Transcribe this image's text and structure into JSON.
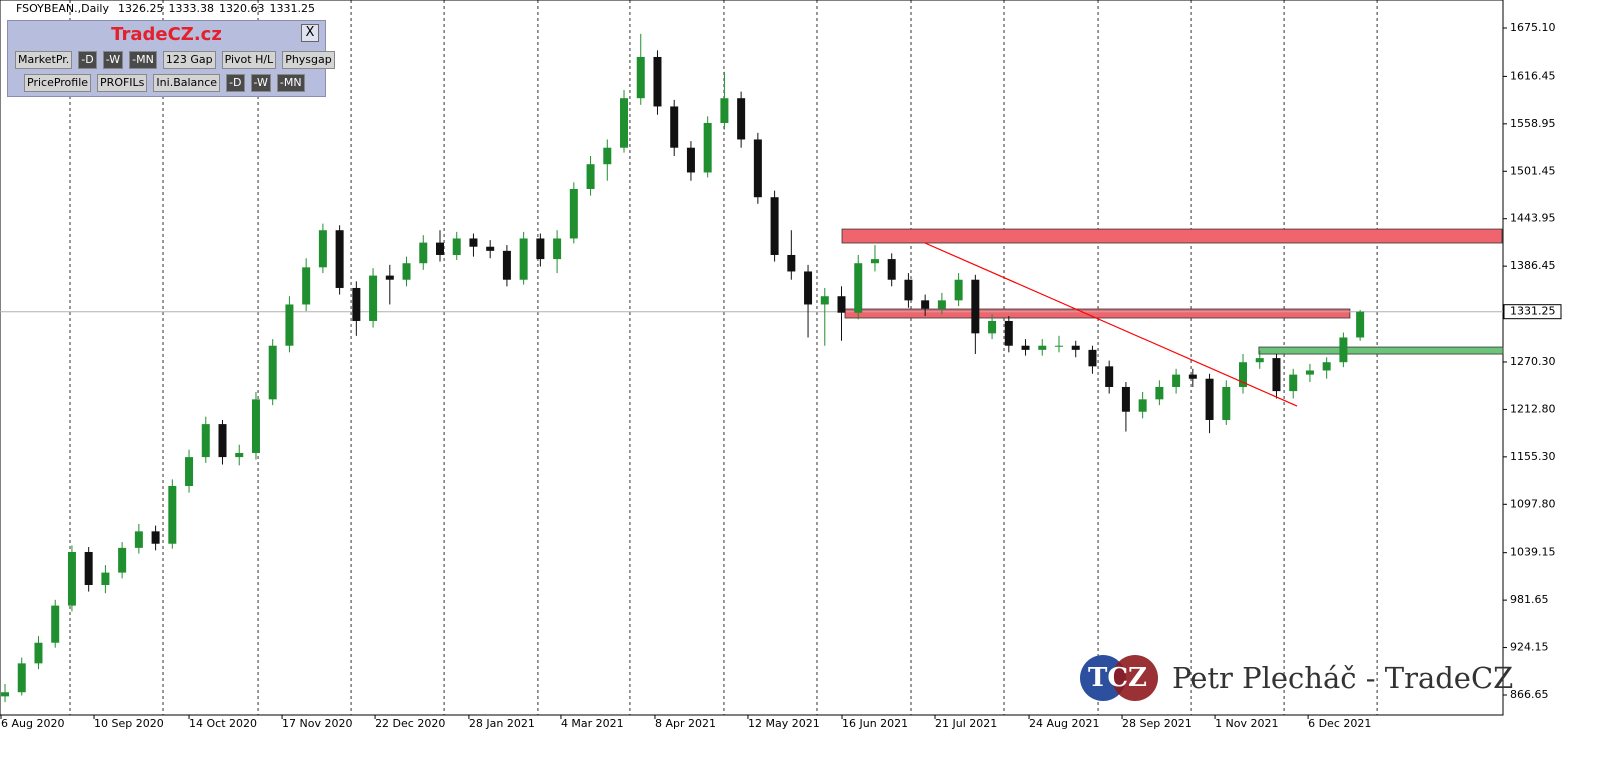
{
  "chart_data": {
    "type": "candlestick",
    "title": "FSOYBEAN.,Daily",
    "ohlc_header": [
      1326.25,
      1333.38,
      1320.63,
      1331.25
    ],
    "open": [
      865,
      870,
      905,
      930,
      975,
      1040,
      1000,
      1015,
      1045,
      1065,
      1050,
      1120,
      1155,
      1195,
      1155,
      1160,
      1225,
      1290,
      1340,
      1385,
      1430,
      1360,
      1320,
      1375,
      1370,
      1390,
      1415,
      1400,
      1420,
      1410,
      1405,
      1370,
      1420,
      1395,
      1420,
      1480,
      1510,
      1530,
      1590,
      1640,
      1580,
      1530,
      1500,
      1560,
      1590,
      1540,
      1470,
      1400,
      1380,
      1340,
      1350,
      1330,
      1390,
      1395,
      1370,
      1345,
      1335,
      1345,
      1370,
      1305,
      1320,
      1290,
      1285,
      1290,
      1290,
      1285,
      1265,
      1240,
      1210,
      1225,
      1240,
      1255,
      1250,
      1200,
      1240,
      1270,
      1275,
      1235,
      1255,
      1260,
      1270,
      1300
    ],
    "high": [
      880,
      912,
      938,
      982,
      1048,
      1046,
      1024,
      1052,
      1074,
      1072,
      1128,
      1164,
      1204,
      1200,
      1170,
      1234,
      1298,
      1350,
      1396,
      1438,
      1436,
      1368,
      1384,
      1388,
      1398,
      1424,
      1430,
      1428,
      1426,
      1418,
      1412,
      1428,
      1426,
      1430,
      1488,
      1520,
      1540,
      1600,
      1668,
      1648,
      1588,
      1538,
      1568,
      1622,
      1598,
      1548,
      1478,
      1430,
      1388,
      1360,
      1362,
      1400,
      1412,
      1402,
      1378,
      1352,
      1354,
      1378,
      1376,
      1328,
      1326,
      1298,
      1298,
      1302,
      1296,
      1290,
      1272,
      1246,
      1234,
      1248,
      1262,
      1262,
      1256,
      1248,
      1280,
      1284,
      1280,
      1262,
      1268,
      1276,
      1306,
      1333.38
    ],
    "low": [
      858,
      866,
      898,
      924,
      968,
      992,
      990,
      1008,
      1038,
      1042,
      1044,
      1112,
      1148,
      1146,
      1145,
      1152,
      1218,
      1282,
      1332,
      1378,
      1352,
      1302,
      1312,
      1340,
      1362,
      1382,
      1392,
      1394,
      1398,
      1396,
      1362,
      1364,
      1386,
      1378,
      1414,
      1472,
      1490,
      1524,
      1582,
      1570,
      1520,
      1490,
      1494,
      1552,
      1530,
      1462,
      1392,
      1370,
      1300,
      1290,
      1296,
      1322,
      1380,
      1362,
      1336,
      1326,
      1328,
      1338,
      1280,
      1298,
      1282,
      1278,
      1278,
      1282,
      1276,
      1256,
      1232,
      1186,
      1202,
      1218,
      1232,
      1240,
      1184,
      1194,
      1232,
      1262,
      1226,
      1226,
      1246,
      1250,
      1264,
      1296
    ],
    "close": [
      870,
      905,
      930,
      975,
      1040,
      1000,
      1015,
      1045,
      1065,
      1050,
      1120,
      1155,
      1195,
      1155,
      1160,
      1225,
      1290,
      1340,
      1385,
      1430,
      1360,
      1320,
      1375,
      1370,
      1390,
      1415,
      1400,
      1420,
      1410,
      1405,
      1370,
      1420,
      1395,
      1420,
      1480,
      1510,
      1530,
      1590,
      1640,
      1580,
      1530,
      1500,
      1560,
      1590,
      1540,
      1470,
      1400,
      1380,
      1340,
      1350,
      1330,
      1390,
      1395,
      1370,
      1345,
      1335,
      1345,
      1370,
      1305,
      1320,
      1290,
      1285,
      1290,
      1290,
      1285,
      1265,
      1240,
      1210,
      1225,
      1240,
      1255,
      1250,
      1200,
      1240,
      1270,
      1275,
      1235,
      1255,
      1260,
      1270,
      1300,
      1331.25
    ],
    "up_color": "#1f8f2f",
    "down_color": "#111111",
    "ylim": [
      842.41,
      1709.04
    ],
    "yticks": [
      {
        "value": 866.65,
        "label": "866.65"
      },
      {
        "value": 924.15,
        "label": "924.15"
      },
      {
        "value": 981.65,
        "label": "981.65"
      },
      {
        "value": 1039.15,
        "label": "1039.15"
      },
      {
        "value": 1097.8,
        "label": "1097.80"
      },
      {
        "value": 1155.3,
        "label": "1155.30"
      },
      {
        "value": 1212.8,
        "label": "1212.80"
      },
      {
        "value": 1270.3,
        "label": "1270.30"
      },
      {
        "value": 1386.45,
        "label": "1386.45"
      },
      {
        "value": 1443.95,
        "label": "1443.95"
      },
      {
        "value": 1501.45,
        "label": "1501.45"
      },
      {
        "value": 1558.95,
        "label": "1558.95"
      },
      {
        "value": 1616.45,
        "label": "1616.45"
      },
      {
        "value": 1675.1,
        "label": "1675.10"
      }
    ],
    "xlim": [
      -0.3,
      89.54
    ],
    "xticks": [
      {
        "value": -0.3,
        "label": "6 Aug 2020"
      },
      {
        "value": 5.26,
        "label": "10 Sep 2020"
      },
      {
        "value": 10.94,
        "label": "14 Oct 2020"
      },
      {
        "value": 16.5,
        "label": "17 Nov 2020"
      },
      {
        "value": 22.06,
        "label": "22 Dec 2020"
      },
      {
        "value": 27.67,
        "label": "28 Jan 2021"
      },
      {
        "value": 33.17,
        "label": "4 Mar 2021"
      },
      {
        "value": 38.79,
        "label": "8 Apr 2021"
      },
      {
        "value": 44.35,
        "label": "12 May 2021"
      },
      {
        "value": 49.97,
        "label": "16 Jun 2021"
      },
      {
        "value": 55.53,
        "label": "21 Jul 2021"
      },
      {
        "value": 61.15,
        "label": "24 Aug 2021"
      },
      {
        "value": 66.71,
        "label": "28 Sep 2021"
      },
      {
        "value": 72.27,
        "label": "1 Nov 2021"
      },
      {
        "value": 77.83,
        "label": "6 Dec 2021"
      }
    ],
    "grid": "x",
    "zones": [
      {
        "x": [
          50.03,
          89.48
        ],
        "y": [
          1414.5,
          1431.4
        ],
        "color": "#f0646e"
      },
      {
        "x": [
          50.21,
          80.39
        ],
        "y": [
          1323.6,
          1334.5
        ],
        "color": "#f0646e"
      },
      {
        "x": [
          74.95,
          89.54
        ],
        "y": [
          1279.9,
          1288.4
        ],
        "color": "#6cc47a"
      }
    ],
    "trendline": {
      "x": [
        54.99,
        77.23
      ],
      "y": [
        1414.5,
        1216.9
      ],
      "color": "#ff0000"
    },
    "last_price": 1331.25
  },
  "panel": {
    "title": "TradeCZ.cz",
    "close": "X",
    "row1": [
      "MarketPr.",
      "-D",
      "-W",
      "-MN",
      "123 Gap",
      "Pivot H/L",
      "Physgap"
    ],
    "row2": [
      "PriceProfile",
      "PROFILs",
      "Ini.Balance",
      "-D",
      "-W",
      "-MN"
    ]
  },
  "watermark": {
    "logo": "TCZ",
    "text": "Petr Plecháč - TradeCZ"
  }
}
